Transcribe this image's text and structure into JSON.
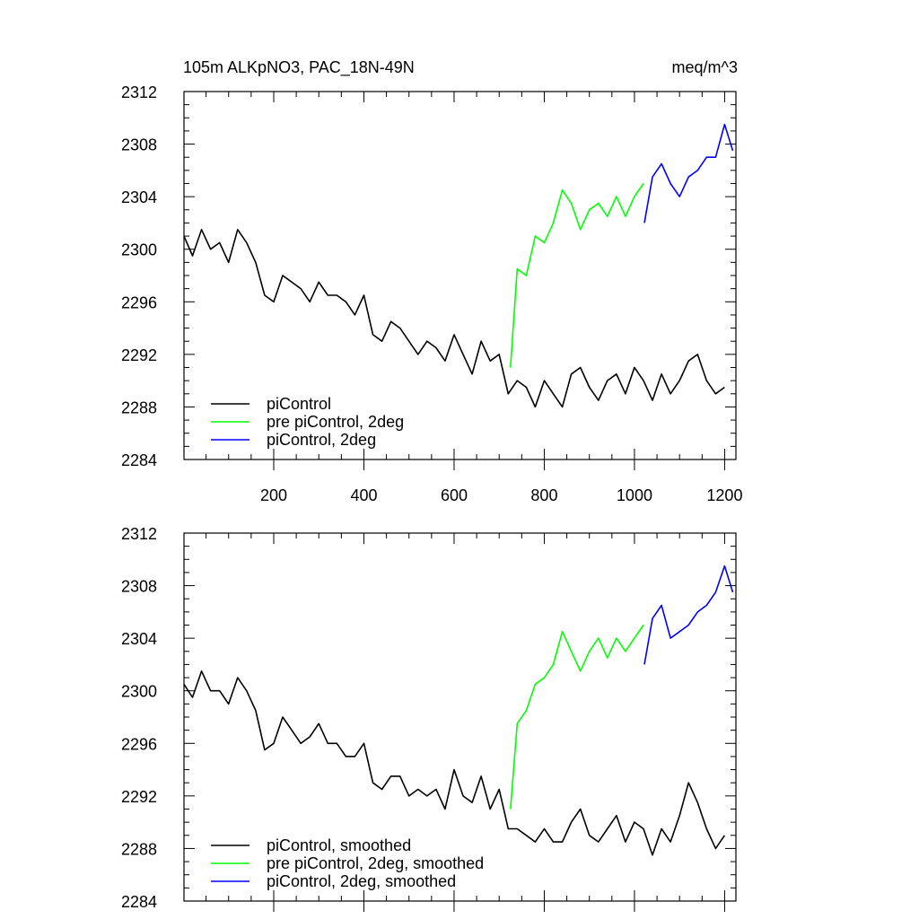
{
  "chart_data": [
    {
      "type": "line",
      "title": "105m ALKpNO3, PAC_18N-49N",
      "units": "meq/m^3",
      "xlabel": "",
      "ylabel": "",
      "xlim": [
        1,
        1225
      ],
      "ylim": [
        2284,
        2312
      ],
      "xticks": [
        200,
        400,
        600,
        800,
        1000,
        1200
      ],
      "yticks": [
        2284,
        2288,
        2292,
        2296,
        2300,
        2304,
        2308,
        2312
      ],
      "legend_position": "bottom-left",
      "series": [
        {
          "name": "piControl",
          "color": "#000000",
          "x": [
            1,
            20,
            40,
            60,
            80,
            100,
            120,
            140,
            160,
            180,
            200,
            220,
            240,
            260,
            280,
            300,
            320,
            340,
            360,
            380,
            400,
            420,
            440,
            460,
            480,
            500,
            520,
            540,
            560,
            580,
            600,
            620,
            640,
            660,
            680,
            700,
            720,
            740,
            760,
            780,
            800,
            820,
            840,
            860,
            880,
            900,
            920,
            940,
            960,
            980,
            1000,
            1020,
            1040,
            1060,
            1080,
            1100,
            1120,
            1140,
            1160,
            1180,
            1200
          ],
          "values": [
            2301.0,
            2299.5,
            2301.5,
            2300.0,
            2300.5,
            2299.0,
            2301.5,
            2300.5,
            2299.0,
            2296.5,
            2296.0,
            2298.0,
            2297.5,
            2297.0,
            2296.0,
            2297.5,
            2296.5,
            2296.5,
            2296.0,
            2295.0,
            2296.5,
            2293.5,
            2293.0,
            2294.5,
            2294.0,
            2293.0,
            2292.0,
            2293.0,
            2292.5,
            2291.5,
            2293.5,
            2292.0,
            2290.5,
            2293.0,
            2291.5,
            2292.0,
            2289.0,
            2290.0,
            2289.5,
            2288.0,
            2290.0,
            2289.0,
            2288.0,
            2290.5,
            2291.0,
            2289.5,
            2288.5,
            2290.0,
            2290.5,
            2289.0,
            2291.0,
            2290.0,
            2288.5,
            2290.5,
            2289.0,
            2290.0,
            2291.5,
            2292.0,
            2290.0,
            2289.0,
            2289.5
          ]
        },
        {
          "name": "pre piControl, 2deg",
          "color": "#00ff00",
          "x": [
            725,
            740,
            760,
            780,
            800,
            820,
            840,
            860,
            880,
            900,
            920,
            940,
            960,
            980,
            1000,
            1020
          ],
          "values": [
            2291.0,
            2298.5,
            2298.0,
            2301.0,
            2300.5,
            2302.0,
            2304.5,
            2303.5,
            2301.5,
            2303.0,
            2303.5,
            2302.5,
            2304.0,
            2302.5,
            2304.0,
            2305.0
          ]
        },
        {
          "name": "piControl, 2deg",
          "color": "#0000ff",
          "x": [
            1022,
            1040,
            1060,
            1080,
            1100,
            1120,
            1140,
            1160,
            1180,
            1200,
            1218
          ],
          "values": [
            2302.0,
            2305.5,
            2306.5,
            2305.0,
            2304.0,
            2305.5,
            2306.0,
            2307.0,
            2307.0,
            2309.5,
            2307.5
          ]
        }
      ]
    },
    {
      "type": "line",
      "title": "",
      "xlabel": "",
      "ylabel": "",
      "xlim": [
        1,
        1225
      ],
      "ylim": [
        2284,
        2312
      ],
      "yticks": [
        2284,
        2288,
        2292,
        2296,
        2300,
        2304,
        2308,
        2312
      ],
      "legend_position": "bottom-left",
      "series": [
        {
          "name": "piControl, smoothed",
          "color": "#000000",
          "x": [
            1,
            20,
            40,
            60,
            80,
            100,
            120,
            140,
            160,
            180,
            200,
            220,
            240,
            260,
            280,
            300,
            320,
            340,
            360,
            380,
            400,
            420,
            440,
            460,
            480,
            500,
            520,
            540,
            560,
            580,
            600,
            620,
            640,
            660,
            680,
            700,
            720,
            740,
            760,
            780,
            800,
            820,
            840,
            860,
            880,
            900,
            920,
            940,
            960,
            980,
            1000,
            1020,
            1040,
            1060,
            1080,
            1100,
            1120,
            1140,
            1160,
            1180,
            1200
          ],
          "values": [
            2300.5,
            2299.5,
            2301.5,
            2300.0,
            2300.0,
            2299.0,
            2301.0,
            2300.0,
            2298.5,
            2295.5,
            2296.0,
            2298.0,
            2297.0,
            2296.0,
            2296.5,
            2297.5,
            2296.0,
            2296.0,
            2295.0,
            2295.0,
            2296.0,
            2293.0,
            2292.5,
            2293.5,
            2293.5,
            2292.0,
            2292.5,
            2292.0,
            2292.5,
            2291.0,
            2294.0,
            2292.0,
            2291.5,
            2293.5,
            2291.0,
            2292.5,
            2289.5,
            2289.5,
            2289.0,
            2288.5,
            2289.5,
            2288.5,
            2288.5,
            2290.0,
            2291.0,
            2289.0,
            2288.5,
            2289.5,
            2290.5,
            2288.5,
            2290.0,
            2289.5,
            2287.5,
            2289.5,
            2288.5,
            2290.5,
            2293.0,
            2291.5,
            2289.5,
            2288.0,
            2289.0
          ]
        },
        {
          "name": "pre piControl, 2deg, smoothed",
          "color": "#00ff00",
          "x": [
            725,
            740,
            760,
            780,
            800,
            820,
            840,
            860,
            880,
            900,
            920,
            940,
            960,
            980,
            1000,
            1020
          ],
          "values": [
            2291.0,
            2297.5,
            2298.5,
            2300.5,
            2301.0,
            2302.0,
            2304.5,
            2303.0,
            2301.5,
            2303.0,
            2304.0,
            2302.5,
            2304.0,
            2303.0,
            2304.0,
            2305.0
          ]
        },
        {
          "name": "piControl, 2deg, smoothed",
          "color": "#0000ff",
          "x": [
            1022,
            1040,
            1060,
            1080,
            1100,
            1120,
            1140,
            1160,
            1180,
            1200,
            1218
          ],
          "values": [
            2302.0,
            2305.5,
            2306.5,
            2304.0,
            2304.5,
            2305.0,
            2306.0,
            2306.5,
            2307.5,
            2309.5,
            2307.5
          ]
        }
      ]
    }
  ]
}
